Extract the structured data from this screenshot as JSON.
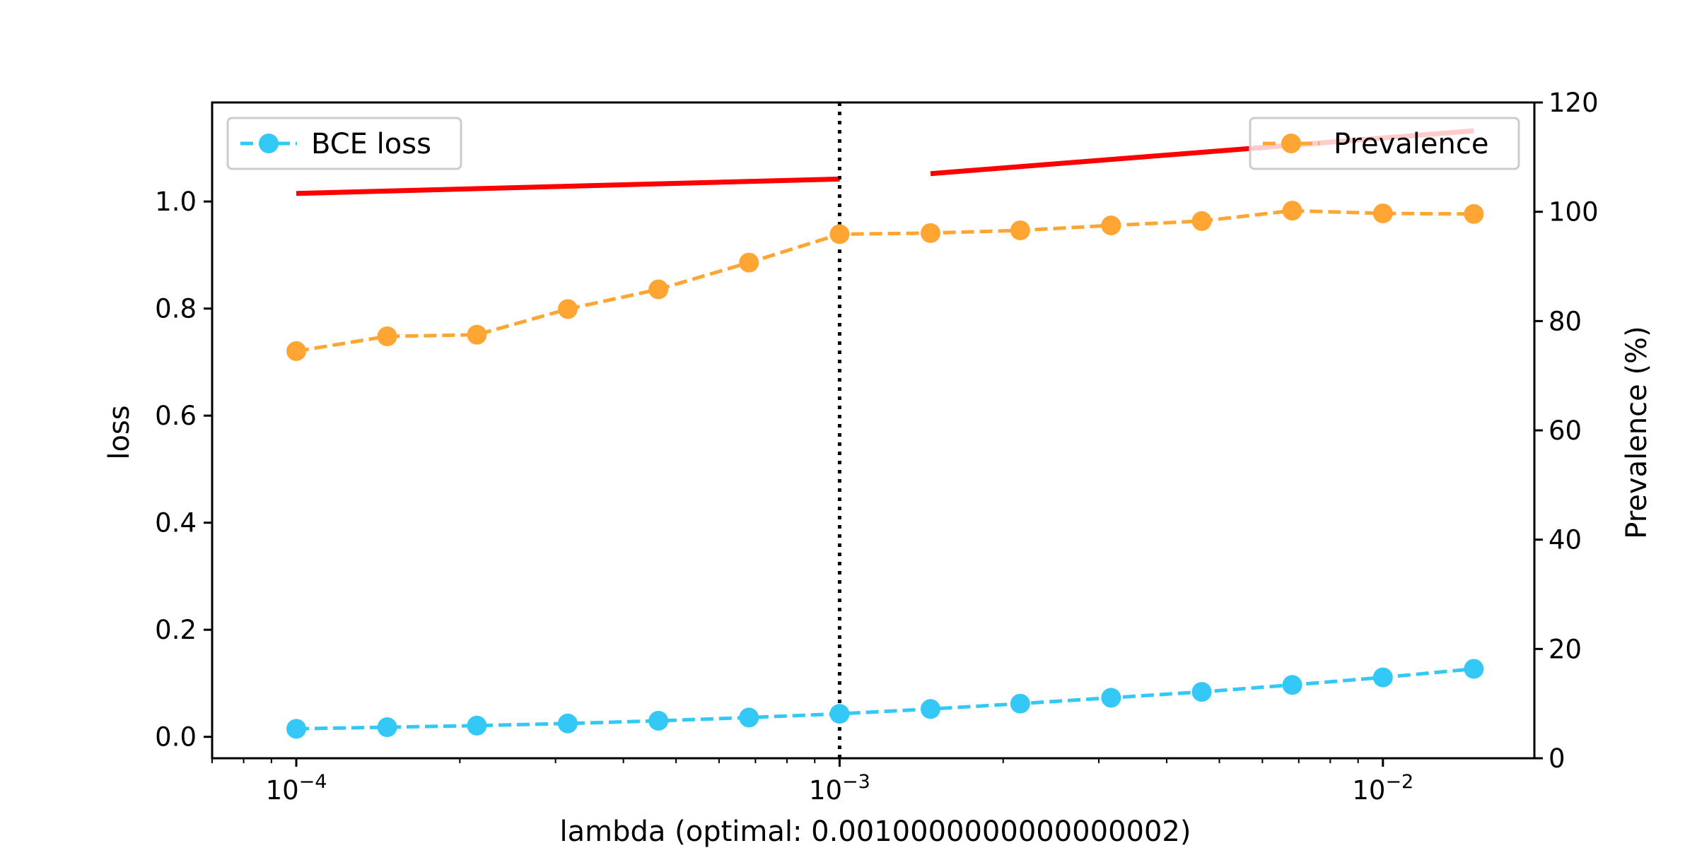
{
  "chart_data": {
    "type": "line",
    "xlabel": "lambda (optimal: 0.0010000000000000002)",
    "ylabel_left": "loss",
    "ylabel_right": "Prevalence (%)",
    "x_scale": "log",
    "xlim": [
      7e-05,
      0.019
    ],
    "ylim_left": [
      -0.04,
      1.185
    ],
    "ylim_right": [
      0,
      120
    ],
    "grid": false,
    "x_ticks": [
      {
        "value": 0.0001,
        "base": "10",
        "exp": "−4"
      },
      {
        "value": 0.001,
        "base": "10",
        "exp": "−3"
      },
      {
        "value": 0.01,
        "base": "10",
        "exp": "−2"
      }
    ],
    "y_left_ticks": [
      "0.0",
      "0.2",
      "0.4",
      "0.6",
      "0.8",
      "1.0"
    ],
    "y_right_ticks": [
      "0",
      "20",
      "40",
      "60",
      "80",
      "100",
      "120"
    ],
    "x": [
      0.0001,
      0.000147,
      0.000215,
      0.000316,
      0.000464,
      0.000681,
      0.001,
      0.00147,
      0.00215,
      0.00316,
      0.00464,
      0.00681,
      0.01,
      0.0147
    ],
    "series": [
      {
        "name": "BCE loss",
        "axis": "left",
        "color": "#33c8f5",
        "style": "dashed",
        "marker": "circle",
        "values": [
          0.015,
          0.018,
          0.021,
          0.025,
          0.03,
          0.036,
          0.043,
          0.052,
          0.062,
          0.073,
          0.084,
          0.097,
          0.111,
          0.127
        ]
      },
      {
        "name": "Prevalence",
        "axis": "right",
        "color": "#ffa533",
        "style": "dashed",
        "marker": "circle",
        "values": [
          74.5,
          77.2,
          77.5,
          82.2,
          85.8,
          90.7,
          95.9,
          96.1,
          96.6,
          97.5,
          98.3,
          100.2,
          99.7,
          99.6
        ]
      }
    ],
    "red_segments": [
      {
        "x": [
          0.0001,
          0.001
        ],
        "y_left": [
          1.015,
          1.042
        ],
        "color": "#ff0000"
      },
      {
        "x": [
          0.00147,
          0.0147
        ],
        "y_left": [
          1.052,
          1.132
        ],
        "color": "#ff0000"
      }
    ],
    "vline": {
      "x": 0.001,
      "style": "dotted",
      "color": "#000000"
    },
    "legends": [
      {
        "label": "BCE loss",
        "placement": "upper-left"
      },
      {
        "label": "Prevalence",
        "placement": "upper-right"
      }
    ]
  }
}
